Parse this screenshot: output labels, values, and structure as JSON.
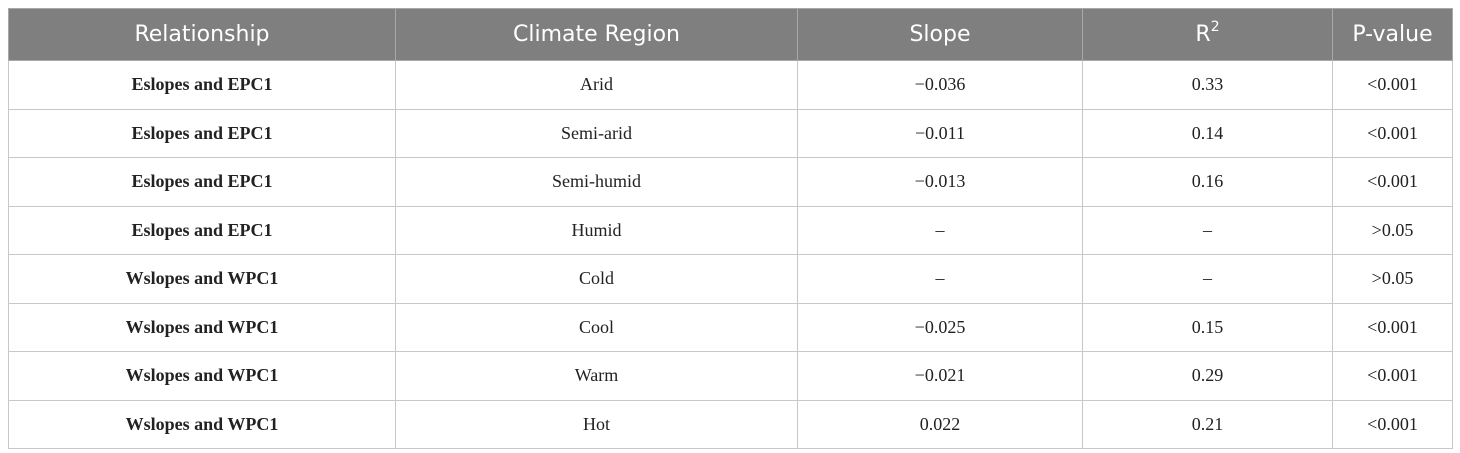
{
  "table": {
    "header": [
      "Relationship",
      "Climate Region",
      "Slope",
      {
        "text": "R",
        "superscript": "2"
      },
      "P-value"
    ],
    "rows": [
      [
        "Eslopes and EPC1",
        "Arid",
        "−0.036",
        "0.33",
        "<0.001"
      ],
      [
        "Eslopes and EPC1",
        "Semi-arid",
        "−0.011",
        "0.14",
        "<0.001"
      ],
      [
        "Eslopes and EPC1",
        "Semi-humid",
        "−0.013",
        "0.16",
        "<0.001"
      ],
      [
        "Eslopes and EPC1",
        "Humid",
        "–",
        "–",
        ">0.05"
      ],
      [
        "Wslopes and WPC1",
        "Cold",
        "–",
        "–",
        ">0.05"
      ],
      [
        "Wslopes and WPC1",
        "Cool",
        "−0.025",
        "0.15",
        "<0.001"
      ],
      [
        "Wslopes and WPC1",
        "Warm",
        "−0.021",
        "0.29",
        "<0.001"
      ],
      [
        "Wslopes and WPC1",
        "Hot",
        "0.022",
        "0.21",
        "<0.001"
      ]
    ]
  }
}
